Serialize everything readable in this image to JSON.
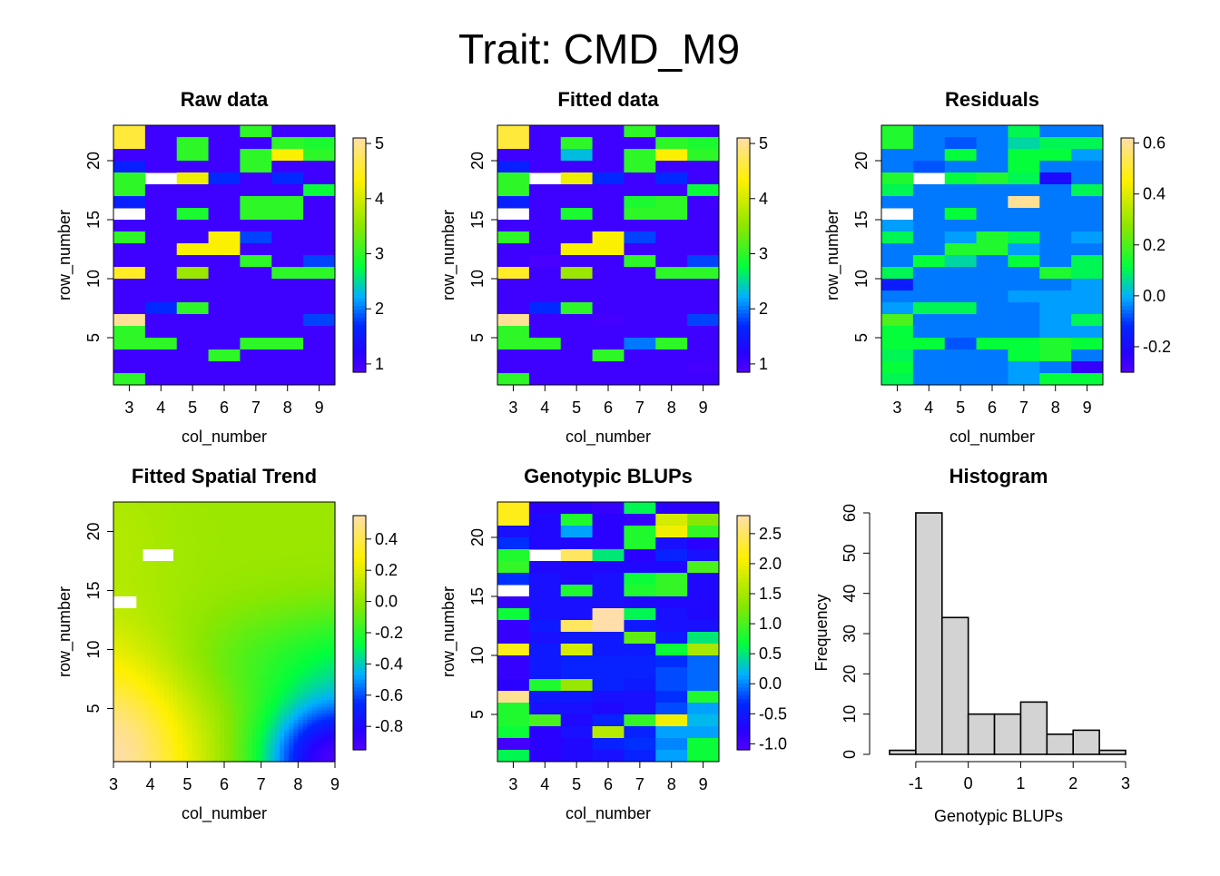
{
  "figure": {
    "title": "Trait: CMD_M9"
  },
  "chart_data": [
    {
      "type": "heatmap",
      "title": "Raw data",
      "xlabel": "col_number",
      "ylabel": "row_number",
      "x_ticks": [
        "3",
        "4",
        "5",
        "6",
        "7",
        "8",
        "9"
      ],
      "y_ticks": [
        "5",
        "10",
        "15",
        "20"
      ],
      "legend_ticks": [
        "1",
        "2",
        "3",
        "4",
        "5"
      ],
      "zlim": [
        0.85,
        5.1
      ],
      "columns": [
        3,
        4,
        5,
        6,
        7,
        8,
        9
      ],
      "rows": [
        22,
        21,
        20,
        19,
        18,
        17,
        16,
        15,
        14,
        13,
        12,
        11,
        10,
        9,
        8,
        7,
        6,
        5,
        4,
        3,
        2,
        1
      ],
      "matrix": [
        [
          4.6,
          1,
          1,
          1,
          3,
          1,
          1
        ],
        [
          4.6,
          1,
          3,
          1,
          1,
          3,
          2.9
        ],
        [
          1,
          1,
          3,
          1,
          3,
          4.3,
          3
        ],
        [
          1.6,
          1,
          1,
          1,
          3,
          1,
          1
        ],
        [
          3,
          null,
          4.2,
          1.7,
          1,
          1.7,
          1
        ],
        [
          3,
          1,
          1,
          1,
          1,
          1,
          2.8
        ],
        [
          1.6,
          1,
          1,
          1,
          3,
          3,
          1
        ],
        [
          null,
          1,
          2.9,
          1,
          3,
          3,
          1
        ],
        [
          1,
          1,
          1,
          1,
          1,
          1,
          1
        ],
        [
          3,
          1,
          1,
          4.3,
          1.8,
          1,
          1
        ],
        [
          1,
          1,
          4.3,
          4.3,
          1,
          1,
          1
        ],
        [
          1,
          1,
          1,
          1,
          3,
          1,
          1.8
        ],
        [
          4.5,
          1,
          3.6,
          1,
          1,
          3,
          3
        ],
        [
          1,
          1,
          1,
          1,
          1,
          1,
          1
        ],
        [
          1,
          1,
          1,
          1,
          1,
          1,
          1
        ],
        [
          1,
          1.7,
          3,
          1,
          1,
          1,
          1
        ],
        [
          5,
          1,
          1,
          1,
          1,
          1,
          1.8
        ],
        [
          3,
          1,
          1,
          1,
          1,
          1,
          1
        ],
        [
          3,
          3,
          1,
          1,
          3,
          3,
          1
        ],
        [
          1,
          1,
          1,
          3,
          1,
          1,
          1
        ],
        [
          1,
          1,
          1,
          1,
          1,
          1,
          1
        ],
        [
          3,
          1,
          1,
          1,
          1,
          1,
          1
        ]
      ]
    },
    {
      "type": "heatmap",
      "title": "Fitted data",
      "xlabel": "col_number",
      "ylabel": "row_number",
      "x_ticks": [
        "3",
        "4",
        "5",
        "6",
        "7",
        "8",
        "9"
      ],
      "y_ticks": [
        "5",
        "10",
        "15",
        "20"
      ],
      "legend_ticks": [
        "1",
        "2",
        "3",
        "4",
        "5"
      ],
      "zlim": [
        0.85,
        5.1
      ],
      "columns": [
        3,
        4,
        5,
        6,
        7,
        8,
        9
      ],
      "rows": [
        22,
        21,
        20,
        19,
        18,
        17,
        16,
        15,
        14,
        13,
        12,
        11,
        10,
        9,
        8,
        7,
        6,
        5,
        4,
        3,
        2,
        1
      ],
      "matrix": [
        [
          4.6,
          1,
          1,
          1,
          3,
          1,
          1
        ],
        [
          4.6,
          1,
          3,
          1,
          1,
          3,
          2.9
        ],
        [
          1,
          1,
          2.3,
          1,
          3,
          4.3,
          3
        ],
        [
          1.6,
          1,
          1,
          1,
          3,
          1,
          1
        ],
        [
          3,
          null,
          4.2,
          1.7,
          1,
          1.7,
          1
        ],
        [
          3,
          1,
          1,
          1,
          1,
          1,
          2.8
        ],
        [
          1.6,
          1,
          1,
          1,
          2.9,
          3,
          1
        ],
        [
          null,
          1,
          2.9,
          1,
          3,
          3,
          1
        ],
        [
          1,
          1,
          1,
          1,
          1,
          1,
          1
        ],
        [
          3,
          1,
          1,
          4.3,
          1.8,
          1,
          1
        ],
        [
          1,
          1,
          4.3,
          4.3,
          1,
          1,
          1
        ],
        [
          1,
          0.9,
          1,
          1,
          3,
          1,
          1.8
        ],
        [
          4.5,
          1,
          3.6,
          1,
          1,
          3,
          3
        ],
        [
          1,
          1,
          1,
          1,
          1,
          1,
          1
        ],
        [
          1,
          1,
          1,
          1,
          1,
          1,
          1
        ],
        [
          1,
          1.7,
          3,
          1,
          1,
          1,
          1
        ],
        [
          5,
          1,
          1,
          0.95,
          1,
          1,
          1.8
        ],
        [
          3,
          1,
          1,
          1,
          1,
          1,
          1
        ],
        [
          3,
          3,
          1,
          1,
          2,
          3,
          1
        ],
        [
          1,
          1,
          1,
          3,
          1,
          1,
          1
        ],
        [
          1,
          1,
          1,
          1,
          1,
          1,
          0.95
        ],
        [
          3,
          1,
          1,
          1,
          1,
          1,
          1
        ]
      ]
    },
    {
      "type": "heatmap",
      "title": "Residuals",
      "xlabel": "col_number",
      "ylabel": "row_number",
      "x_ticks": [
        "3",
        "4",
        "5",
        "6",
        "7",
        "8",
        "9"
      ],
      "y_ticks": [
        "5",
        "10",
        "15",
        "20"
      ],
      "legend_ticks": [
        "-0.2",
        "0.0",
        "0.2",
        "0.4",
        "0.6"
      ],
      "zlim": [
        -0.3,
        0.62
      ],
      "columns": [
        3,
        4,
        5,
        6,
        7,
        8,
        9
      ],
      "rows": [
        22,
        21,
        20,
        19,
        18,
        17,
        16,
        15,
        14,
        13,
        12,
        11,
        10,
        9,
        8,
        7,
        6,
        5,
        4,
        3,
        2,
        1
      ],
      "matrix": [
        [
          0.15,
          -0.05,
          -0.05,
          -0.05,
          0.1,
          -0.05,
          -0.05
        ],
        [
          0.15,
          -0.05,
          -0.08,
          -0.05,
          0.05,
          0.1,
          0.1
        ],
        [
          -0.05,
          -0.05,
          0.12,
          -0.05,
          0.12,
          0.12,
          -0.02
        ],
        [
          -0.05,
          -0.08,
          -0.05,
          -0.05,
          0.12,
          -0.05,
          -0.05
        ],
        [
          0.15,
          null,
          0.12,
          0.15,
          0.1,
          -0.2,
          -0.05
        ],
        [
          0.1,
          -0.05,
          -0.05,
          -0.05,
          -0.05,
          -0.05,
          0.1
        ],
        [
          -0.05,
          -0.05,
          -0.05,
          -0.05,
          0.6,
          -0.05,
          -0.05
        ],
        [
          null,
          -0.05,
          0.12,
          -0.05,
          -0.05,
          -0.05,
          -0.05
        ],
        [
          -0.02,
          -0.05,
          -0.05,
          -0.05,
          -0.05,
          -0.05,
          -0.05
        ],
        [
          0.1,
          -0.05,
          -0.02,
          0.15,
          0.1,
          -0.05,
          -0.02
        ],
        [
          -0.05,
          -0.05,
          0.15,
          0.15,
          -0.02,
          -0.05,
          -0.05
        ],
        [
          -0.05,
          0.12,
          0.05,
          -0.05,
          0.12,
          -0.05,
          0.1
        ],
        [
          0.1,
          -0.05,
          -0.05,
          -0.05,
          -0.05,
          0.15,
          0.1
        ],
        [
          -0.15,
          -0.05,
          -0.05,
          -0.05,
          -0.05,
          -0.05,
          -0.02
        ],
        [
          -0.05,
          -0.05,
          -0.05,
          -0.05,
          -0.02,
          -0.02,
          -0.02
        ],
        [
          -0.02,
          0.1,
          0.1,
          -0.05,
          -0.05,
          -0.02,
          -0.02
        ],
        [
          0.2,
          -0.05,
          -0.05,
          -0.05,
          -0.05,
          -0.02,
          0.1
        ],
        [
          0.12,
          -0.05,
          -0.05,
          -0.05,
          -0.05,
          -0.02,
          -0.02
        ],
        [
          0.12,
          0.12,
          -0.08,
          0.12,
          0.12,
          0.15,
          0.12
        ],
        [
          0.1,
          -0.05,
          -0.05,
          -0.05,
          0.12,
          0.15,
          -0.05
        ],
        [
          0.12,
          -0.05,
          -0.05,
          -0.05,
          -0.02,
          -0.05,
          -0.25
        ],
        [
          0.1,
          -0.05,
          -0.05,
          -0.05,
          -0.02,
          0.12,
          0.12
        ]
      ]
    },
    {
      "type": "heatmap",
      "title": "Fitted Spatial Trend",
      "xlabel": "col_number",
      "ylabel": "row_number",
      "x_ticks": [
        "3",
        "4",
        "5",
        "6",
        "7",
        "8",
        "9"
      ],
      "y_ticks": [
        "5",
        "10",
        "15",
        "20"
      ],
      "legend_ticks": [
        "-0.8",
        "-0.6",
        "-0.4",
        "-0.2",
        "0.0",
        "0.2",
        "0.4"
      ],
      "zlim": [
        -0.95,
        0.55
      ],
      "x_range": [
        3,
        9
      ],
      "y_range": [
        0.5,
        22.5
      ],
      "smooth_surface": true,
      "missing_cells": [
        {
          "col": 4,
          "row": 18
        },
        {
          "col": 3,
          "row": 14
        }
      ]
    },
    {
      "type": "heatmap",
      "title": "Genotypic BLUPs",
      "xlabel": "col_number",
      "ylabel": "row_number",
      "x_ticks": [
        "3",
        "4",
        "5",
        "6",
        "7",
        "8",
        "9"
      ],
      "y_ticks": [
        "5",
        "10",
        "15",
        "20"
      ],
      "legend_ticks": [
        "-1.0",
        "-0.5",
        "0.0",
        "0.5",
        "1.0",
        "1.5",
        "2.0",
        "2.5"
      ],
      "zlim": [
        -1.1,
        2.8
      ],
      "columns": [
        3,
        4,
        5,
        6,
        7,
        8,
        9
      ],
      "rows": [
        22,
        21,
        20,
        19,
        18,
        17,
        16,
        15,
        14,
        13,
        12,
        11,
        10,
        9,
        8,
        7,
        6,
        5,
        4,
        3,
        2,
        1
      ],
      "matrix": [
        [
          2.2,
          -0.8,
          -0.8,
          -0.9,
          0.6,
          -0.8,
          -0.8
        ],
        [
          2.2,
          -0.7,
          0.8,
          -0.8,
          -0.9,
          1.8,
          1.3
        ],
        [
          -0.6,
          -0.7,
          0.1,
          -0.8,
          0.8,
          2.0,
          0.9
        ],
        [
          -0.3,
          -0.7,
          -0.7,
          -0.8,
          0.8,
          -0.6,
          -0.8
        ],
        [
          0.8,
          null,
          2.5,
          0.5,
          -0.8,
          -0.4,
          -0.6
        ],
        [
          0.9,
          -0.7,
          -0.7,
          -0.7,
          -0.7,
          -0.7,
          1.0
        ],
        [
          -0.3,
          -0.6,
          -0.7,
          -0.6,
          0.7,
          0.9,
          -0.7
        ],
        [
          null,
          -0.6,
          0.8,
          -0.6,
          0.8,
          0.9,
          -0.7
        ],
        [
          -0.9,
          -0.6,
          -0.6,
          -0.6,
          -0.7,
          -0.7,
          -0.7
        ],
        [
          0.7,
          -0.6,
          -0.6,
          2.8,
          0.6,
          -0.6,
          -0.7
        ],
        [
          -0.9,
          -0.5,
          2.5,
          2.8,
          -0.5,
          -0.6,
          -0.6
        ],
        [
          -0.9,
          -0.6,
          -0.5,
          -0.5,
          1.1,
          -0.5,
          0.5
        ],
        [
          2.2,
          -0.5,
          1.8,
          -0.5,
          -0.5,
          0.7,
          1.5
        ],
        [
          -0.9,
          -0.5,
          -0.4,
          -0.4,
          -0.4,
          -0.3,
          -0.1
        ],
        [
          -0.9,
          -0.5,
          -0.4,
          -0.4,
          -0.4,
          -0.2,
          -0.1
        ],
        [
          -0.8,
          0.8,
          1.4,
          -0.4,
          -0.5,
          -0.2,
          -0.1
        ],
        [
          2.7,
          -0.5,
          -0.5,
          -0.6,
          -0.6,
          -0.3,
          0.8
        ],
        [
          0.8,
          -0.6,
          -0.6,
          -0.7,
          -0.6,
          -0.2,
          0.1
        ],
        [
          0.8,
          1.0,
          -0.7,
          -0.4,
          0.9,
          2.0,
          0.2
        ],
        [
          0.7,
          -0.8,
          -0.6,
          1.6,
          -0.4,
          0.1,
          0.1
        ],
        [
          -1.0,
          -0.8,
          -0.7,
          -0.4,
          -0.3,
          0.0,
          0.7
        ],
        [
          0.6,
          -0.8,
          -0.7,
          -0.6,
          -0.4,
          0.1,
          0.7
        ]
      ]
    },
    {
      "type": "bar",
      "subtype": "histogram",
      "title": "Histogram",
      "xlabel": "Genotypic BLUPs",
      "ylabel": "Frequency",
      "bins": [
        [
          -1.5,
          -1.0
        ],
        [
          -1.0,
          -0.5
        ],
        [
          -0.5,
          0.0
        ],
        [
          0.0,
          0.5
        ],
        [
          0.5,
          1.0
        ],
        [
          1.0,
          1.5
        ],
        [
          1.5,
          2.0
        ],
        [
          2.0,
          2.5
        ],
        [
          2.5,
          3.0
        ]
      ],
      "values": [
        1,
        60,
        34,
        10,
        10,
        13,
        5,
        6,
        1
      ],
      "xlim": [
        -1.5,
        3.0
      ],
      "ylim": [
        0,
        60
      ],
      "x_ticks": [
        "-1",
        "0",
        "1",
        "2",
        "3"
      ],
      "y_ticks": [
        "0",
        "10",
        "20",
        "30",
        "40",
        "50",
        "60"
      ],
      "bar_color": "#d3d3d3"
    }
  ]
}
